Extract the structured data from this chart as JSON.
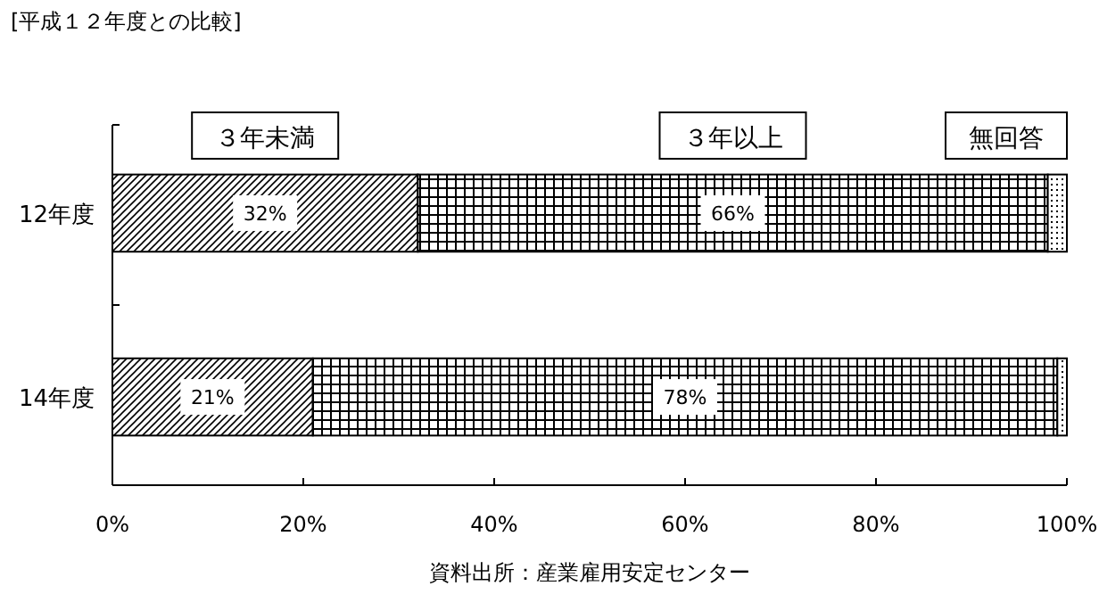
{
  "chart_data": {
    "type": "bar",
    "orientation": "horizontal",
    "stacked": true,
    "title": "[平成１２年度との比較]",
    "categories": [
      "12年度",
      "14年度"
    ],
    "series": [
      {
        "name": "３年未満",
        "color": "#000000",
        "values": [
          32,
          21
        ],
        "value_labels": [
          "32%",
          "21%"
        ]
      },
      {
        "name": "３年以上",
        "color": "#000000",
        "values": [
          66,
          78
        ],
        "value_labels": [
          "66%",
          "78%"
        ]
      },
      {
        "name": "無回答",
        "color": "#000000",
        "values": [
          2,
          1
        ],
        "value_labels": [
          null,
          null
        ]
      }
    ],
    "xlim": [
      0,
      100
    ],
    "xticks": [
      {
        "value": 0,
        "label": "0%"
      },
      {
        "value": 20,
        "label": "20%"
      },
      {
        "value": 40,
        "label": "40%"
      },
      {
        "value": 60,
        "label": "60%"
      },
      {
        "value": 80,
        "label": "80%"
      },
      {
        "value": 100,
        "label": "100%"
      }
    ],
    "grid": false,
    "annotations": [
      "資料出所：産業雇用安定センター"
    ]
  }
}
